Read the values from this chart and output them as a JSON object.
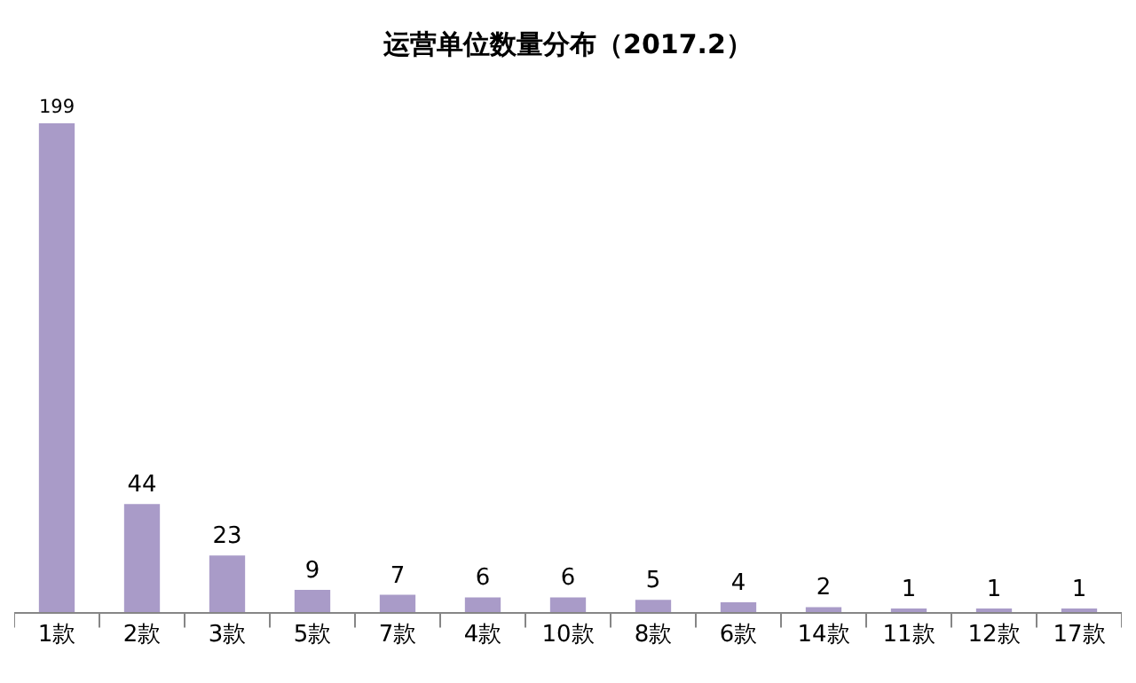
{
  "chart_data": {
    "type": "bar",
    "title": "运营单位数量分布（2017.2）",
    "categories": [
      "1款",
      "2款",
      "3款",
      "5款",
      "7款",
      "4款",
      "10款",
      "8款",
      "6款",
      "14款",
      "11款",
      "12款",
      "17款"
    ],
    "values": [
      199,
      44,
      23,
      9,
      7,
      6,
      6,
      5,
      4,
      2,
      1,
      1,
      1
    ],
    "color": "#a99bc8",
    "data_labels": true,
    "legend": false
  }
}
